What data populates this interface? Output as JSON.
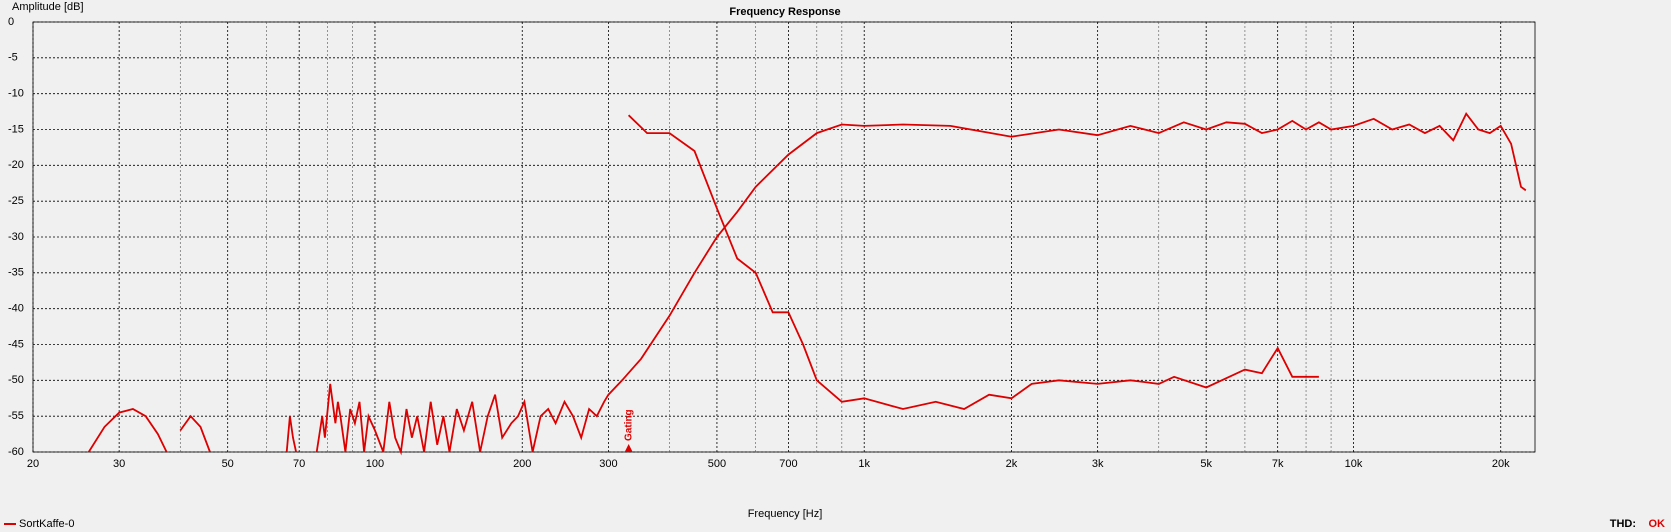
{
  "chart_data": {
    "type": "line",
    "title": "Frequency Response",
    "ylabel": "Amplitude [dB]",
    "xlabel": "Frequency [Hz]",
    "log_x": true,
    "grid": true,
    "xlim": [
      20,
      23500
    ],
    "ylim": [
      -60,
      0
    ],
    "yticks": [
      0,
      -5,
      -10,
      -15,
      -20,
      -25,
      -30,
      -35,
      -40,
      -45,
      -50,
      -55,
      -60
    ],
    "xticks": [
      20,
      30,
      50,
      70,
      100,
      200,
      300,
      500,
      700,
      {
        "value": 1000,
        "label": "1k"
      },
      {
        "value": 2000,
        "label": "2k"
      },
      {
        "value": 3000,
        "label": "3k"
      },
      {
        "value": 5000,
        "label": "5k"
      },
      {
        "value": 7000,
        "label": "7k"
      },
      {
        "value": 10000,
        "label": "10k"
      },
      {
        "value": 20000,
        "label": "20k"
      }
    ],
    "x_minor_ticks": [
      40,
      60,
      80,
      90,
      400,
      600,
      800,
      900,
      4000,
      6000,
      8000,
      9000
    ],
    "series": [
      {
        "name": "SortKaffe-0",
        "color": "#dd0000",
        "x": [
          26,
          28,
          30,
          32,
          34,
          36,
          37.5,
          39,
          40,
          42,
          44,
          46,
          60,
          66,
          67,
          68,
          69,
          72,
          76,
          78,
          79,
          81,
          83,
          84,
          85,
          87,
          89,
          91,
          93,
          95,
          97,
          100,
          104,
          107,
          110,
          113,
          116,
          119,
          122,
          126,
          130,
          134,
          138,
          142,
          147,
          152,
          158,
          164,
          170,
          176,
          182,
          190,
          196,
          202,
          210,
          218,
          226,
          234,
          244,
          254,
          264,
          274,
          284,
          294,
          300,
          320,
          350,
          400,
          450,
          500,
          550,
          600,
          700,
          800,
          900,
          1000,
          1200,
          1500,
          2000,
          2500,
          3000,
          3500,
          4000,
          4500,
          5000,
          5500,
          6000,
          6500,
          7000,
          7500,
          8000,
          8500,
          9000,
          10000,
          11000,
          12000,
          13000,
          14000,
          15000,
          16000,
          17000,
          18000,
          19000,
          20000,
          21000,
          22000,
          22500
        ],
        "values": [
          -60,
          -56.5,
          -54.5,
          -54,
          -55,
          -57.5,
          -60,
          null,
          -57,
          -55,
          -56.5,
          -60,
          null,
          -60,
          -55,
          -58,
          -60,
          null,
          -60,
          -55,
          -58,
          -50.5,
          -56,
          -53,
          -55,
          -60,
          -54,
          -56,
          -53,
          -60,
          -55,
          -57,
          -60,
          -53,
          -58,
          -60,
          -54,
          -58,
          -55,
          -60,
          -53,
          -59,
          -55,
          -60,
          -54,
          -57,
          -53,
          -60,
          -55,
          -52,
          -58,
          -56,
          -55,
          -53,
          -60,
          -55,
          -54,
          -56,
          -53,
          -55,
          -58,
          -54,
          -55,
          -53,
          -52,
          -50,
          -47,
          -41,
          -35,
          -30,
          -26.5,
          -23,
          -18.5,
          -15.5,
          -14.3,
          -14.5,
          -14.3,
          -14.5,
          -16,
          -15,
          -15.8,
          -14.5,
          -15.5,
          -14,
          -15,
          -14,
          -14.2,
          -15.5,
          -15,
          -13.8,
          -15,
          -14,
          -15,
          -14.5,
          -13.5,
          -15,
          -14.3,
          -15.5,
          -14.5,
          -16.5,
          -12.8,
          -15,
          -15.5,
          -14.5,
          -17,
          -23,
          -23.5
        ]
      },
      {
        "color": "#dd0000",
        "x": [
          330,
          360,
          400,
          450,
          500,
          550,
          600,
          650,
          700,
          750,
          800,
          900,
          1000,
          1200,
          1400,
          1600,
          1800,
          2000,
          2200,
          2500,
          3000,
          3500,
          4000,
          4300,
          5000,
          6000,
          6500,
          7000,
          7500,
          8500
        ],
        "values": [
          -13,
          -15.5,
          -15.5,
          -18,
          -26,
          -33,
          -35,
          -40.5,
          -40.5,
          -45,
          -50,
          -53,
          -52.5,
          -54,
          -53,
          -54,
          -52,
          -52.5,
          -50.5,
          -50,
          -50.5,
          -50,
          -50.5,
          -49.5,
          -51,
          -48.5,
          -49,
          -45.5,
          -49.5,
          -49.5
        ]
      }
    ],
    "annotations": [
      {
        "text": "Gating",
        "x": 330
      }
    ],
    "status": {
      "label": "THD:",
      "value": "OK"
    }
  }
}
